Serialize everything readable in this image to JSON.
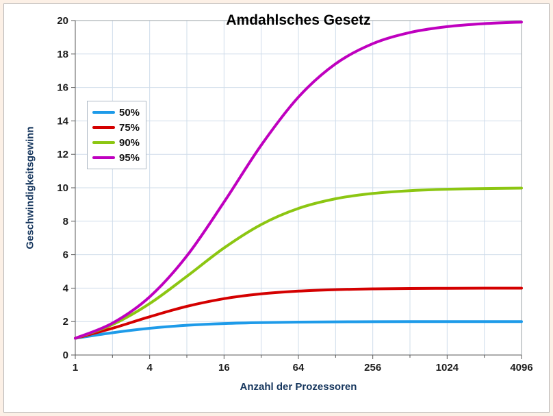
{
  "frame": {
    "outer_background": "#fcf0e6",
    "border_color": "#b6b6b6"
  },
  "chart_data": {
    "type": "line",
    "title": "Amdahlsches Gesetz",
    "xlabel": "Anzahl der Prozessoren",
    "ylabel": "Geschwindigkeitsgewinn",
    "x_scale": "log2",
    "xlim": [
      1,
      4096
    ],
    "ylim": [
      0,
      20
    ],
    "grid": true,
    "gridline_color": "#cfdcea",
    "legend_position": "upper-left-inside",
    "x": [
      1,
      2,
      4,
      8,
      16,
      32,
      64,
      128,
      256,
      512,
      1024,
      2048,
      4096
    ],
    "xtick_values": [
      1,
      4,
      16,
      64,
      256,
      1024,
      4096
    ],
    "xtick_labels": [
      "1",
      "4",
      "16",
      "64",
      "256",
      "1024",
      "4096"
    ],
    "yticks": [
      0,
      2,
      4,
      6,
      8,
      10,
      12,
      14,
      16,
      18,
      20
    ],
    "series": [
      {
        "name": "50%",
        "parallel_fraction": 0.5,
        "color": "#1e9be9",
        "values": [
          1,
          1.333,
          1.6,
          1.778,
          1.882,
          1.939,
          1.969,
          1.984,
          1.992,
          1.996,
          1.998,
          1.999,
          2.0
        ]
      },
      {
        "name": "75%",
        "parallel_fraction": 0.75,
        "color": "#d40000",
        "values": [
          1,
          1.6,
          2.286,
          2.909,
          3.368,
          3.657,
          3.821,
          3.908,
          3.953,
          3.977,
          3.988,
          3.994,
          3.997
        ]
      },
      {
        "name": "90%",
        "parallel_fraction": 0.9,
        "color": "#8cc612",
        "values": [
          1,
          1.818,
          3.077,
          4.706,
          6.4,
          7.805,
          8.767,
          9.343,
          9.661,
          9.828,
          9.913,
          9.956,
          9.978
        ]
      },
      {
        "name": "95%",
        "parallel_fraction": 0.95,
        "color": "#bf00bf",
        "values": [
          1,
          1.905,
          3.478,
          5.926,
          9.143,
          12.549,
          15.422,
          17.415,
          18.618,
          19.285,
          19.636,
          19.816,
          19.908
        ]
      }
    ]
  }
}
